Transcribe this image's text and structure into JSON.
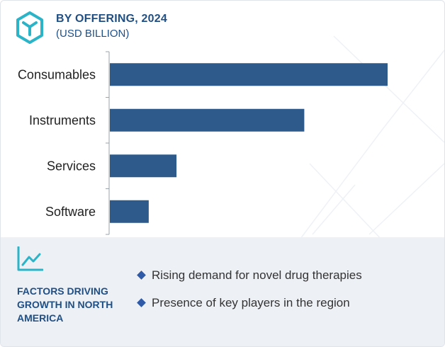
{
  "header": {
    "title": "BY OFFERING, 2024",
    "subtitle": "(USD BILLION)",
    "logo_icon": "cube-logo-icon"
  },
  "colors": {
    "bar": "#2d5a8a",
    "title": "#1f4f85",
    "footer_bg": "#edf0f5",
    "bullet": "#2e5aa8"
  },
  "chart_data": {
    "type": "bar",
    "orientation": "horizontal",
    "categories": [
      "Consumables",
      "Instruments",
      "Services",
      "Software"
    ],
    "values": [
      100,
      70,
      24,
      14
    ],
    "xlim": [
      0,
      100
    ],
    "title": "BY OFFERING, 2024",
    "unit": "(USD BILLION)",
    "grid": false,
    "legend": "none",
    "value_axis_labels_shown": false
  },
  "footer": {
    "icon": "trend-chart-icon",
    "heading": "FACTORS DRIVING GROWTH IN NORTH AMERICA",
    "factors": [
      "Rising demand for novel drug therapies",
      "Presence of key players in the region"
    ]
  }
}
